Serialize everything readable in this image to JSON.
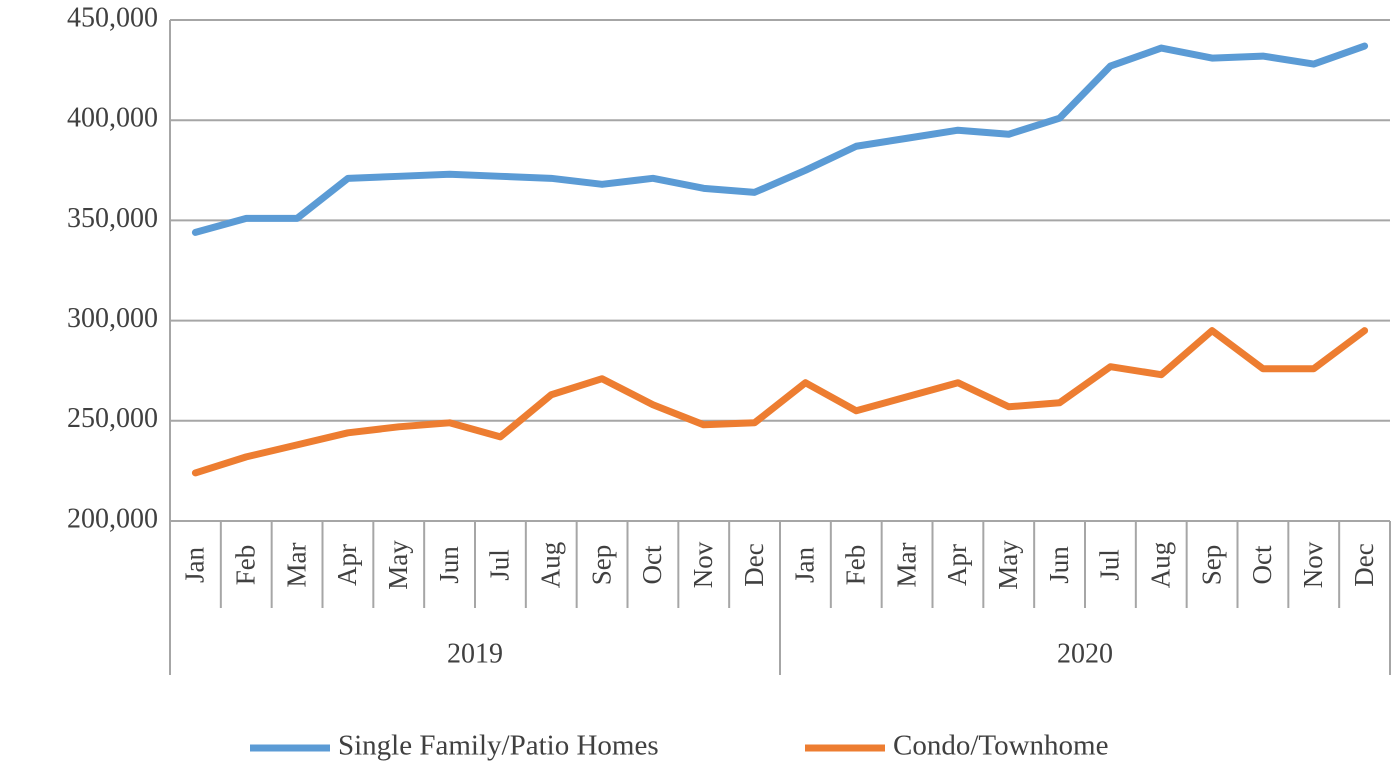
{
  "chart_data": {
    "type": "line",
    "categories": [
      "Jan",
      "Feb",
      "Mar",
      "Apr",
      "May",
      "Jun",
      "Jul",
      "Aug",
      "Sep",
      "Oct",
      "Nov",
      "Dec",
      "Jan",
      "Feb",
      "Mar",
      "Apr",
      "May",
      "Jun",
      "Jul",
      "Aug",
      "Sep",
      "Oct",
      "Nov",
      "Dec"
    ],
    "x_groups": [
      "2019",
      "2020"
    ],
    "series": [
      {
        "name": "Single Family/Patio Homes",
        "color": "#5b9bd5",
        "values": [
          344000,
          351000,
          351000,
          371000,
          372000,
          373000,
          372000,
          371000,
          368000,
          371000,
          366000,
          364000,
          375000,
          387000,
          391000,
          395000,
          393000,
          401000,
          427000,
          436000,
          431000,
          432000,
          428000,
          437000
        ]
      },
      {
        "name": "Condo/Townhome",
        "color": "#ed7d31",
        "values": [
          224000,
          232000,
          238000,
          244000,
          247000,
          249000,
          242000,
          263000,
          271000,
          258000,
          248000,
          249000,
          269000,
          255000,
          262000,
          269000,
          257000,
          259000,
          277000,
          273000,
          295000,
          276000,
          276000,
          295000
        ]
      }
    ],
    "ylim": [
      200000,
      450000
    ],
    "yticks": [
      {
        "value": 200000,
        "label": "200,000"
      },
      {
        "value": 250000,
        "label": "250,000"
      },
      {
        "value": 300000,
        "label": "300,000"
      },
      {
        "value": 350000,
        "label": "350,000"
      },
      {
        "value": 400000,
        "label": "400,000"
      },
      {
        "value": 450000,
        "label": "450,000"
      }
    ],
    "grid": true,
    "legend": "bottom"
  }
}
